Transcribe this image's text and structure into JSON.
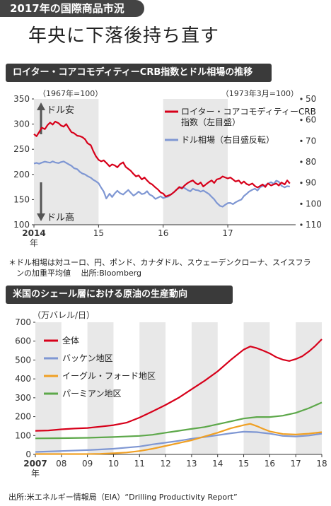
{
  "banner": "2017年の国際商品市況",
  "headline": "年央に下落後持ち直す",
  "colors": {
    "red": "#d7001a",
    "blue": "#7f97d3",
    "orange": "#f0a024",
    "green": "#5da84a",
    "stripe": "#e8e8e8",
    "header_bg": "#3a3a3a"
  },
  "chart1": {
    "section_title": "ロイター・コアコモディティーCRB指数とドル相場の推移",
    "notes": [
      "＊ドル相場は対ユーロ、円、ポンド、カナダドル、スウェーデンクローナ、スイスフラ",
      "　ンの加重平均値　 出所:Bloomberg"
    ],
    "base_left": "（1967年=100）",
    "base_right": "（1973年3月=100）",
    "dollar_weak": "ドル安",
    "dollar_strong": "ドル高",
    "year_unit": "年"
  },
  "chart2": {
    "section_title": "米国のシェール層における原油の生産動向",
    "unit": "（万バレル/日）",
    "year_unit": "年",
    "source": "出所:米エネルギー情報局（EIA）“Drilling Productivity Report”"
  },
  "chart_data": [
    {
      "type": "line",
      "title": "ロイター・コアコモディティーCRB指数とドル相場の推移",
      "x_ticks": [
        "2014",
        "15",
        "16",
        "17"
      ],
      "xlim": [
        2014.0,
        2018.05
      ],
      "ylim_left": [
        100,
        350
      ],
      "y_ticks_left": [
        "350",
        "300",
        "250",
        "200",
        "150",
        "100"
      ],
      "ylim_right": [
        50,
        110
      ],
      "y_ticks_right": [
        "50",
        "60",
        "70",
        "80",
        "90",
        "100",
        "110"
      ],
      "right_axis_inverted": true,
      "series": [
        {
          "name": "ロイター・コアコモディティーCRB指数（左目盛）",
          "axis": "left",
          "color": "red",
          "x": [
            2014.0,
            2014.04,
            2014.08,
            2014.12,
            2014.17,
            2014.21,
            2014.25,
            2014.29,
            2014.33,
            2014.38,
            2014.42,
            2014.46,
            2014.5,
            2014.54,
            2014.58,
            2014.62,
            2014.67,
            2014.71,
            2014.75,
            2014.79,
            2014.83,
            2014.88,
            2014.92,
            2014.96,
            2015.0,
            2015.04,
            2015.08,
            2015.12,
            2015.17,
            2015.21,
            2015.25,
            2015.29,
            2015.33,
            2015.38,
            2015.42,
            2015.46,
            2015.5,
            2015.54,
            2015.58,
            2015.62,
            2015.67,
            2015.71,
            2015.75,
            2015.79,
            2015.83,
            2015.88,
            2015.92,
            2015.96,
            2016.0,
            2016.04,
            2016.08,
            2016.12,
            2016.17,
            2016.21,
            2016.25,
            2016.29,
            2016.33,
            2016.38,
            2016.42,
            2016.46,
            2016.5,
            2016.54,
            2016.58,
            2016.62,
            2016.67,
            2016.71,
            2016.75,
            2016.79,
            2016.83,
            2016.88,
            2016.92,
            2016.96,
            2017.0,
            2017.04,
            2017.08,
            2017.12,
            2017.17,
            2017.21,
            2017.25,
            2017.29,
            2017.33,
            2017.38,
            2017.42,
            2017.46,
            2017.5,
            2017.54,
            2017.58,
            2017.62,
            2017.67,
            2017.71,
            2017.75,
            2017.79,
            2017.83,
            2017.88,
            2017.92,
            2017.96
          ],
          "y": [
            280,
            276,
            284,
            293,
            290,
            298,
            303,
            299,
            305,
            302,
            297,
            295,
            300,
            292,
            284,
            282,
            277,
            276,
            274,
            270,
            262,
            258,
            246,
            236,
            229,
            226,
            228,
            223,
            216,
            220,
            218,
            214,
            220,
            224,
            215,
            211,
            207,
            201,
            196,
            198,
            190,
            194,
            188,
            183,
            180,
            174,
            170,
            164,
            162,
            156,
            158,
            160,
            165,
            170,
            175,
            172,
            178,
            183,
            186,
            188,
            183,
            180,
            184,
            176,
            181,
            185,
            188,
            183,
            190,
            192,
            196,
            194,
            192,
            194,
            190,
            186,
            188,
            182,
            186,
            181,
            179,
            182,
            177,
            174,
            177,
            180,
            175,
            182,
            178,
            180,
            182,
            178,
            184,
            180,
            188,
            182
          ]
        },
        {
          "name": "ドル相場（右目盛反転）",
          "axis": "right",
          "color": "blue",
          "x": [
            2014.0,
            2014.04,
            2014.08,
            2014.12,
            2014.17,
            2014.21,
            2014.25,
            2014.29,
            2014.33,
            2014.38,
            2014.42,
            2014.46,
            2014.5,
            2014.54,
            2014.58,
            2014.62,
            2014.67,
            2014.71,
            2014.75,
            2014.79,
            2014.83,
            2014.88,
            2014.92,
            2014.96,
            2015.0,
            2015.04,
            2015.08,
            2015.12,
            2015.17,
            2015.21,
            2015.25,
            2015.29,
            2015.33,
            2015.38,
            2015.42,
            2015.46,
            2015.5,
            2015.54,
            2015.58,
            2015.62,
            2015.67,
            2015.71,
            2015.75,
            2015.79,
            2015.83,
            2015.88,
            2015.92,
            2015.96,
            2016.0,
            2016.04,
            2016.08,
            2016.12,
            2016.17,
            2016.21,
            2016.25,
            2016.29,
            2016.33,
            2016.38,
            2016.42,
            2016.46,
            2016.5,
            2016.54,
            2016.58,
            2016.62,
            2016.67,
            2016.71,
            2016.75,
            2016.79,
            2016.83,
            2016.88,
            2016.92,
            2016.96,
            2017.0,
            2017.04,
            2017.08,
            2017.12,
            2017.17,
            2017.21,
            2017.25,
            2017.29,
            2017.33,
            2017.38,
            2017.42,
            2017.46,
            2017.5,
            2017.54,
            2017.58,
            2017.62,
            2017.67,
            2017.71,
            2017.75,
            2017.79,
            2017.83,
            2017.88,
            2017.92,
            2017.96
          ],
          "y": [
            80.8,
            80.5,
            80.9,
            80.4,
            79.9,
            80.2,
            80.4,
            79.8,
            80.3,
            80.6,
            80.1,
            79.8,
            80.5,
            81.2,
            81.9,
            83.0,
            83.5,
            84.8,
            85.6,
            86.0,
            86.8,
            87.6,
            88.6,
            89.3,
            90.2,
            92.3,
            94.2,
            97.5,
            95.2,
            96.8,
            95.1,
            93.8,
            94.9,
            95.6,
            94.5,
            93.4,
            94.8,
            96.1,
            95.3,
            94.2,
            95.4,
            95.1,
            94.0,
            95.6,
            96.2,
            97.7,
            97.1,
            96.4,
            97.3,
            96.9,
            96.6,
            95.5,
            94.4,
            93.1,
            92.4,
            92.1,
            92.5,
            93.5,
            94.1,
            92.8,
            93.4,
            93.6,
            94.2,
            93.7,
            94.6,
            95.4,
            96.7,
            97.9,
            99.6,
            101.0,
            101.4,
            100.5,
            99.7,
            99.6,
            100.2,
            99.3,
            98.5,
            98.0,
            96.3,
            95.3,
            94.2,
            93.3,
            92.8,
            93.7,
            92.1,
            91.6,
            91.2,
            90.4,
            89.7,
            90.5,
            89.0,
            89.5,
            91.4,
            92.2,
            91.6,
            91.8
          ]
        }
      ]
    },
    {
      "type": "line",
      "title": "米国のシェール層における原油の生産動向",
      "x_ticks": [
        "2007",
        "08",
        "09",
        "10",
        "11",
        "12",
        "13",
        "14",
        "15",
        "16",
        "17",
        "18"
      ],
      "xlim": [
        2007,
        2018
      ],
      "ylim": [
        0,
        700
      ],
      "y_ticks": [
        "0",
        "100",
        "200",
        "300",
        "400",
        "500",
        "600",
        "700"
      ],
      "ylabel": "（万バレル/日）",
      "series": [
        {
          "name": "全体",
          "color": "red",
          "x": [
            2007,
            2007.5,
            2008,
            2008.5,
            2009,
            2009.5,
            2010,
            2010.5,
            2011,
            2011.5,
            2012,
            2012.5,
            2013,
            2013.5,
            2014,
            2014.5,
            2015,
            2015.25,
            2015.5,
            2015.75,
            2016,
            2016.25,
            2016.5,
            2016.75,
            2017,
            2017.25,
            2017.5,
            2017.75,
            2018
          ],
          "y": [
            125,
            127,
            133,
            137,
            140,
            147,
            155,
            168,
            195,
            228,
            262,
            300,
            345,
            390,
            440,
            500,
            555,
            572,
            563,
            550,
            535,
            515,
            502,
            495,
            505,
            520,
            545,
            575,
            610
          ]
        },
        {
          "name": "バッケン地区",
          "color": "blue",
          "x": [
            2007,
            2008,
            2009,
            2010,
            2011,
            2011.5,
            2012,
            2012.5,
            2013,
            2013.5,
            2014,
            2014.5,
            2015,
            2015.5,
            2016,
            2016.5,
            2017,
            2017.5,
            2018
          ],
          "y": [
            13,
            18,
            23,
            30,
            42,
            53,
            62,
            72,
            83,
            92,
            102,
            112,
            120,
            118,
            110,
            98,
            95,
            100,
            110
          ]
        },
        {
          "name": "イーグル・フォード地区",
          "color": "orange",
          "x": [
            2007,
            2009,
            2009.5,
            2010,
            2010.5,
            2011,
            2011.5,
            2012,
            2012.5,
            2013,
            2013.5,
            2014,
            2014.5,
            2015,
            2015.25,
            2015.5,
            2015.75,
            2016,
            2016.5,
            2017,
            2017.5,
            2018
          ],
          "y": [
            2,
            2,
            3,
            6,
            10,
            18,
            30,
            45,
            60,
            75,
            95,
            115,
            138,
            155,
            162,
            150,
            135,
            122,
            108,
            105,
            110,
            118
          ]
        },
        {
          "name": "パーミアン地区",
          "color": "green",
          "x": [
            2007,
            2008,
            2009,
            2010,
            2011,
            2011.5,
            2012,
            2012.5,
            2013,
            2013.5,
            2014,
            2014.5,
            2015,
            2015.5,
            2016,
            2016.5,
            2017,
            2017.5,
            2018
          ],
          "y": [
            85,
            86,
            88,
            92,
            98,
            104,
            115,
            125,
            135,
            145,
            160,
            175,
            190,
            198,
            198,
            205,
            220,
            245,
            275
          ]
        }
      ]
    }
  ]
}
